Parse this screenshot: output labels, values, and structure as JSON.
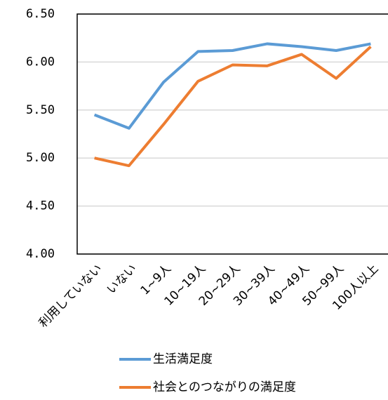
{
  "chart_data": {
    "type": "line",
    "categories": [
      "利用していない",
      "いない",
      "1~9人",
      "10~19人",
      "20~29人",
      "30~39人",
      "40~49人",
      "50~99人",
      "100人以上"
    ],
    "series": [
      {
        "name": "生活満足度",
        "color": "#5b9bd5",
        "values": [
          5.45,
          5.31,
          5.79,
          6.11,
          6.12,
          6.19,
          6.16,
          6.12,
          6.19
        ]
      },
      {
        "name": "社会とのつながりの満足度",
        "color": "#ed7d31",
        "values": [
          5.0,
          4.92,
          5.35,
          5.8,
          5.97,
          5.96,
          6.08,
          5.83,
          6.16
        ]
      }
    ],
    "ylim": [
      4,
      6.5
    ],
    "yticks": [
      {
        "value": 4,
        "label": "4.00"
      },
      {
        "value": 4.5,
        "label": "4.50"
      },
      {
        "value": 5,
        "label": "5.00"
      },
      {
        "value": 5.5,
        "label": "5.50"
      },
      {
        "value": 6,
        "label": "6.00"
      },
      {
        "value": 6.5,
        "label": "6.50"
      }
    ],
    "grid": true,
    "legend": "bottom"
  }
}
